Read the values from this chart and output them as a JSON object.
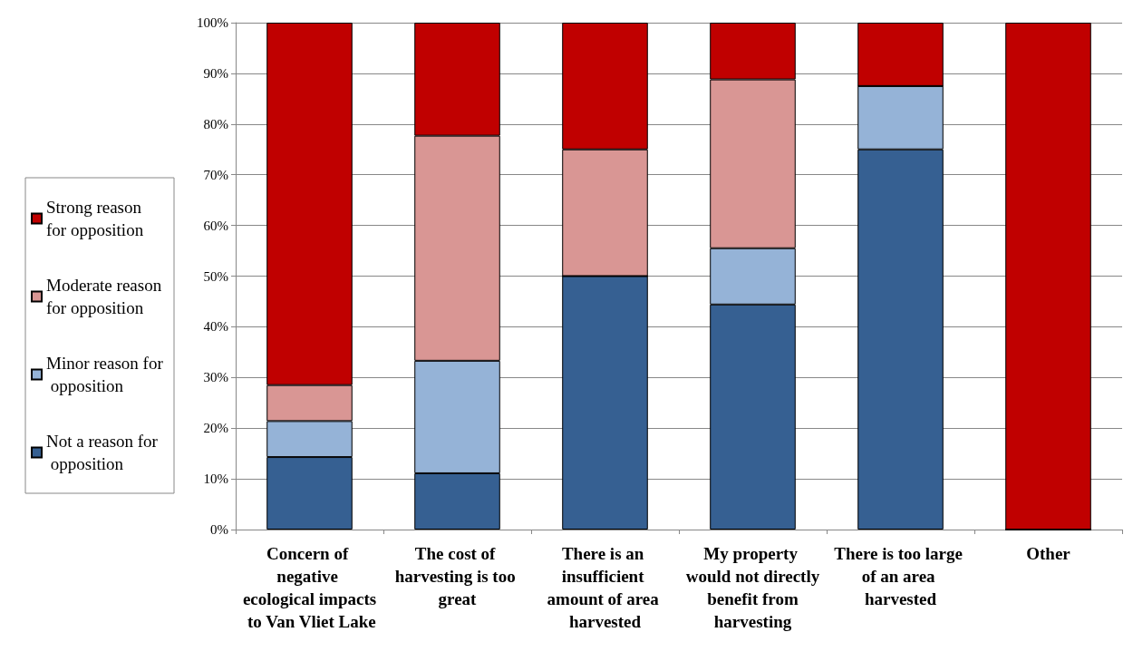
{
  "chart_data": {
    "type": "bar",
    "stacked": true,
    "categories": [
      "Concern of negative ecological impacts to Van Vliet Lake",
      "The cost of harvesting is too great",
      "There is an insufficient amount of area harvested",
      "My property would not directly benefit from harvesting",
      "There is too large of an area harvested",
      "Other"
    ],
    "series": [
      {
        "name": "Not a reason for opposition",
        "color": "#366092",
        "values": [
          14.3,
          11.1,
          50,
          44.4,
          75,
          0
        ]
      },
      {
        "name": "Minor reason for opposition",
        "color": "#95b3d7",
        "values": [
          7.1,
          22.2,
          0,
          11.1,
          12.5,
          0
        ]
      },
      {
        "name": "Moderate reason for opposition",
        "color": "#d99694",
        "values": [
          7.1,
          44.4,
          25,
          33.3,
          0,
          0
        ]
      },
      {
        "name": "Strong reason for opposition",
        "color": "#c00000",
        "values": [
          71.5,
          22.3,
          25,
          11.2,
          12.5,
          100
        ]
      }
    ],
    "ylim": [
      0,
      100
    ],
    "yticks": [
      {
        "value": 0,
        "label": "0%"
      },
      {
        "value": 10,
        "label": "10%"
      },
      {
        "value": 20,
        "label": "20%"
      },
      {
        "value": 30,
        "label": "30%"
      },
      {
        "value": 40,
        "label": "40%"
      },
      {
        "value": 50,
        "label": "50%"
      },
      {
        "value": 60,
        "label": "60%"
      },
      {
        "value": 70,
        "label": "70%"
      },
      {
        "value": 80,
        "label": "80%"
      },
      {
        "value": 90,
        "label": "90%"
      },
      {
        "value": 100,
        "label": "100%"
      }
    ],
    "grid": "y",
    "legend": "left"
  }
}
